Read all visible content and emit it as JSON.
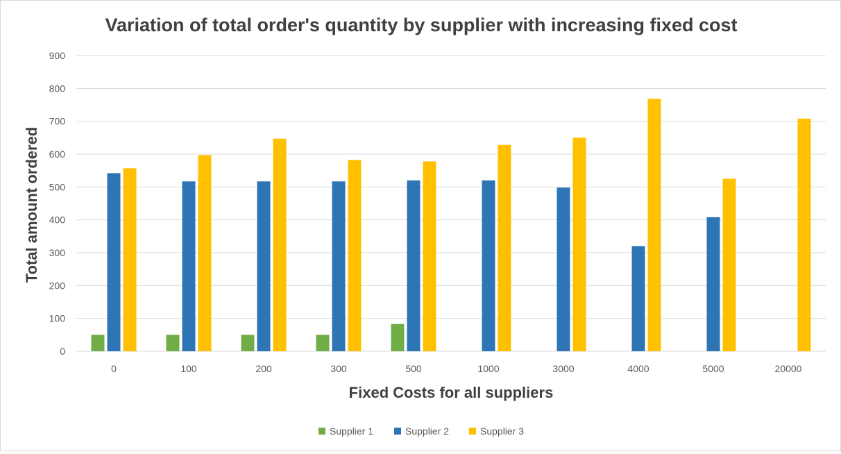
{
  "chart_data": {
    "type": "bar",
    "title": "Variation of total order's quantity by supplier with increasing fixed cost",
    "xlabel": "Fixed Costs for all suppliers",
    "ylabel": "Total amount ordered",
    "categories": [
      "0",
      "100",
      "200",
      "300",
      "500",
      "1000",
      "3000",
      "4000",
      "5000",
      "20000"
    ],
    "ylim": [
      0,
      900
    ],
    "yticks": [
      0,
      100,
      200,
      300,
      400,
      500,
      600,
      700,
      800,
      900
    ],
    "grid": true,
    "legend_position": "bottom",
    "series": [
      {
        "name": "Supplier 1",
        "color": "#70ad47",
        "values": [
          50,
          50,
          50,
          50,
          83,
          0,
          0,
          0,
          0,
          0
        ]
      },
      {
        "name": "Supplier 2",
        "color": "#2e75b6",
        "values": [
          542,
          517,
          517,
          517,
          520,
          520,
          498,
          320,
          408,
          0
        ]
      },
      {
        "name": "Supplier 3",
        "color": "#ffc000",
        "values": [
          557,
          597,
          647,
          582,
          578,
          628,
          650,
          768,
          525,
          708
        ]
      }
    ]
  }
}
